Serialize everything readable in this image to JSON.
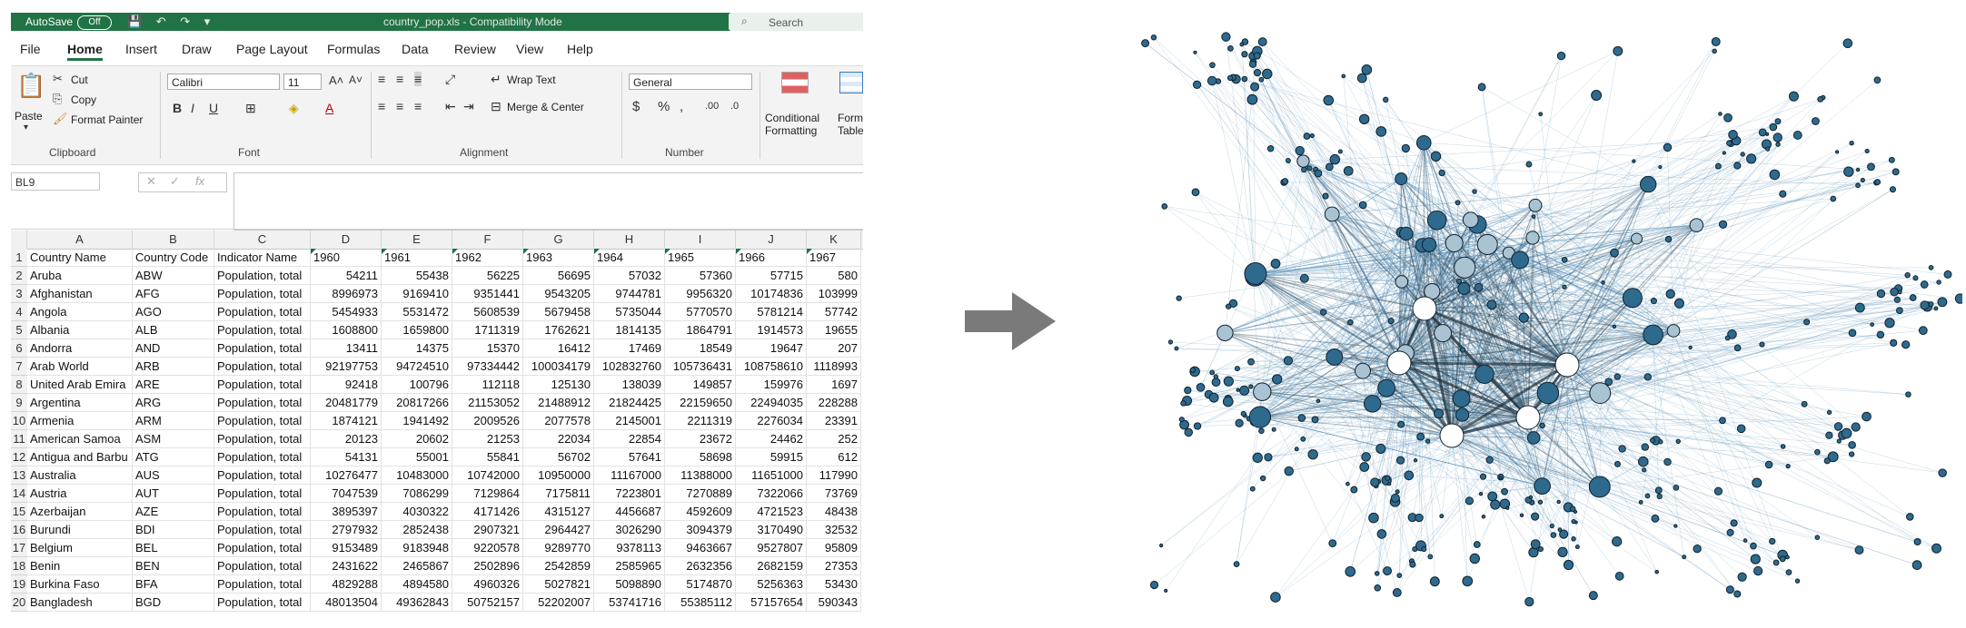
{
  "excel": {
    "titlebar": {
      "autosave": "AutoSave",
      "toggle": "Off",
      "filename": "country_pop.xls  -  Compatibility Mode",
      "search": "Search"
    },
    "menu": [
      "File",
      "Home",
      "Insert",
      "Draw",
      "Page Layout",
      "Formulas",
      "Data",
      "Review",
      "View",
      "Help"
    ],
    "active_menu": "Home",
    "ribbon": {
      "clipboard": {
        "paste": "Paste",
        "cut": "Cut",
        "copy": "Copy",
        "format_painter": "Format Painter",
        "label": "Clipboard"
      },
      "font": {
        "name": "Calibri",
        "size": "11",
        "label": "Font"
      },
      "alignment": {
        "wrap_text": "Wrap Text",
        "merge_center": "Merge & Center",
        "label": "Alignment"
      },
      "number": {
        "format": "General",
        "label": "Number"
      },
      "styles": {
        "conditional": "Conditional",
        "formatting": "Formatting",
        "format_as": "Forma",
        "table": "Table"
      }
    },
    "namebox": "BL9",
    "columns": [
      "A",
      "B",
      "C",
      "D",
      "E",
      "F",
      "G",
      "H",
      "I",
      "J",
      "K"
    ],
    "header_row": [
      "Country Name",
      "Country Code",
      "Indicator Name",
      "1960",
      "1961",
      "1962",
      "1963",
      "1964",
      "1965",
      "1966",
      "1967"
    ],
    "rows": [
      [
        "Aruba",
        "ABW",
        "Population, total",
        "54211",
        "55438",
        "56225",
        "56695",
        "57032",
        "57360",
        "57715",
        "580"
      ],
      [
        "Afghanistan",
        "AFG",
        "Population, total",
        "8996973",
        "9169410",
        "9351441",
        "9543205",
        "9744781",
        "9956320",
        "10174836",
        "103999"
      ],
      [
        "Angola",
        "AGO",
        "Population, total",
        "5454933",
        "5531472",
        "5608539",
        "5679458",
        "5735044",
        "5770570",
        "5781214",
        "57742"
      ],
      [
        "Albania",
        "ALB",
        "Population, total",
        "1608800",
        "1659800",
        "1711319",
        "1762621",
        "1814135",
        "1864791",
        "1914573",
        "19655"
      ],
      [
        "Andorra",
        "AND",
        "Population, total",
        "13411",
        "14375",
        "15370",
        "16412",
        "17469",
        "18549",
        "19647",
        "207"
      ],
      [
        "Arab World",
        "ARB",
        "Population, total",
        "92197753",
        "94724510",
        "97334442",
        "100034179",
        "102832760",
        "105736431",
        "108758610",
        "1118993"
      ],
      [
        "United Arab Emira",
        "ARE",
        "Population, total",
        "92418",
        "100796",
        "112118",
        "125130",
        "138039",
        "149857",
        "159976",
        "1697"
      ],
      [
        "Argentina",
        "ARG",
        "Population, total",
        "20481779",
        "20817266",
        "21153052",
        "21488912",
        "21824425",
        "22159650",
        "22494035",
        "228288"
      ],
      [
        "Armenia",
        "ARM",
        "Population, total",
        "1874121",
        "1941492",
        "2009526",
        "2077578",
        "2145001",
        "2211319",
        "2276034",
        "23391"
      ],
      [
        "American Samoa",
        "ASM",
        "Population, total",
        "20123",
        "20602",
        "21253",
        "22034",
        "22854",
        "23672",
        "24462",
        "252"
      ],
      [
        "Antigua and Barbu",
        "ATG",
        "Population, total",
        "54131",
        "55001",
        "55841",
        "56702",
        "57641",
        "58698",
        "59915",
        "612"
      ],
      [
        "Australia",
        "AUS",
        "Population, total",
        "10276477",
        "10483000",
        "10742000",
        "10950000",
        "11167000",
        "11388000",
        "11651000",
        "117990"
      ],
      [
        "Austria",
        "AUT",
        "Population, total",
        "7047539",
        "7086299",
        "7129864",
        "7175811",
        "7223801",
        "7270889",
        "7322066",
        "73769"
      ],
      [
        "Azerbaijan",
        "AZE",
        "Population, total",
        "3895397",
        "4030322",
        "4171426",
        "4315127",
        "4456687",
        "4592609",
        "4721523",
        "48438"
      ],
      [
        "Burundi",
        "BDI",
        "Population, total",
        "2797932",
        "2852438",
        "2907321",
        "2964427",
        "3026290",
        "3094379",
        "3170490",
        "32532"
      ],
      [
        "Belgium",
        "BEL",
        "Population, total",
        "9153489",
        "9183948",
        "9220578",
        "9289770",
        "9378113",
        "9463667",
        "9527807",
        "95809"
      ],
      [
        "Benin",
        "BEN",
        "Population, total",
        "2431622",
        "2465867",
        "2502896",
        "2542859",
        "2585965",
        "2632356",
        "2682159",
        "27353"
      ],
      [
        "Burkina Faso",
        "BFA",
        "Population, total",
        "4829288",
        "4894580",
        "4960326",
        "5027821",
        "5098890",
        "5174870",
        "5256363",
        "53430"
      ],
      [
        "Bangladesh",
        "BGD",
        "Population, total",
        "48013504",
        "49362843",
        "50752157",
        "52202007",
        "53741716",
        "55385112",
        "57157654",
        "590343"
      ]
    ],
    "colors": {
      "excel_green": "#217346",
      "ribbon_bg": "#f3f3f3"
    }
  },
  "arrow": {
    "color": "#7a7a7a",
    "icon": "right-arrow-icon"
  },
  "network": {
    "node_fill": "#2e6a8e",
    "hub_fill": "#a9c3d3",
    "core_fill": "#ffffff",
    "edge_color": "#4f8ab3"
  }
}
